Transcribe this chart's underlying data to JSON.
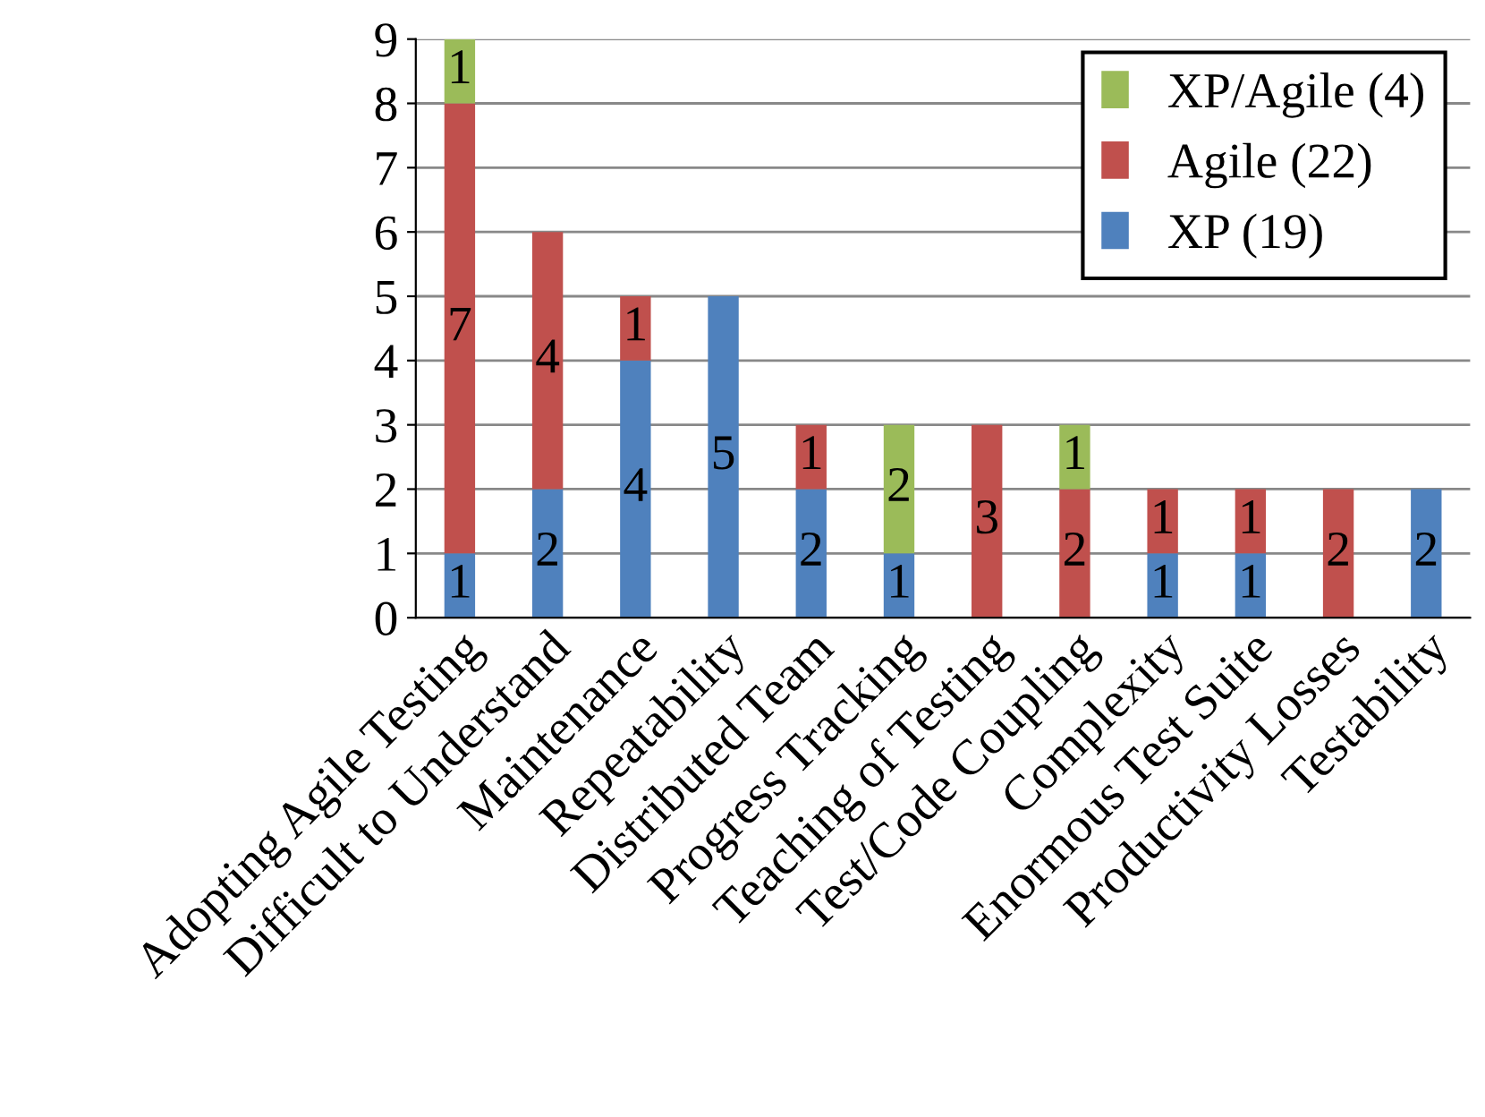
{
  "chart_data": {
    "type": "bar",
    "stacked": true,
    "categories": [
      "Adopting Agile Testing",
      "Difficult to Understand",
      "Maintenance",
      "Repeatability",
      "Distributed Team",
      "Progress Tracking",
      "Teaching of Testing",
      "Test/Code Coupling",
      "Complexity",
      "Enormous Test Suite",
      "Productivity Losses",
      "Testability"
    ],
    "series": [
      {
        "name": "XP (19)",
        "color": "#4f81bd",
        "values": [
          1,
          2,
          4,
          5,
          2,
          1,
          null,
          null,
          1,
          1,
          null,
          2
        ]
      },
      {
        "name": "Agile (22)",
        "color": "#c0504d",
        "values": [
          7,
          4,
          1,
          null,
          1,
          null,
          3,
          2,
          1,
          1,
          2,
          null
        ]
      },
      {
        "name": "XP/Agile (4)",
        "color": "#9bbb59",
        "values": [
          1,
          null,
          null,
          null,
          null,
          2,
          null,
          1,
          null,
          null,
          null,
          null
        ]
      }
    ],
    "ylim": [
      0,
      9
    ],
    "yticks": [
      0,
      1,
      2,
      3,
      4,
      5,
      6,
      7,
      8,
      9
    ],
    "grid": "y",
    "legend": "top right",
    "data_labels": true
  }
}
